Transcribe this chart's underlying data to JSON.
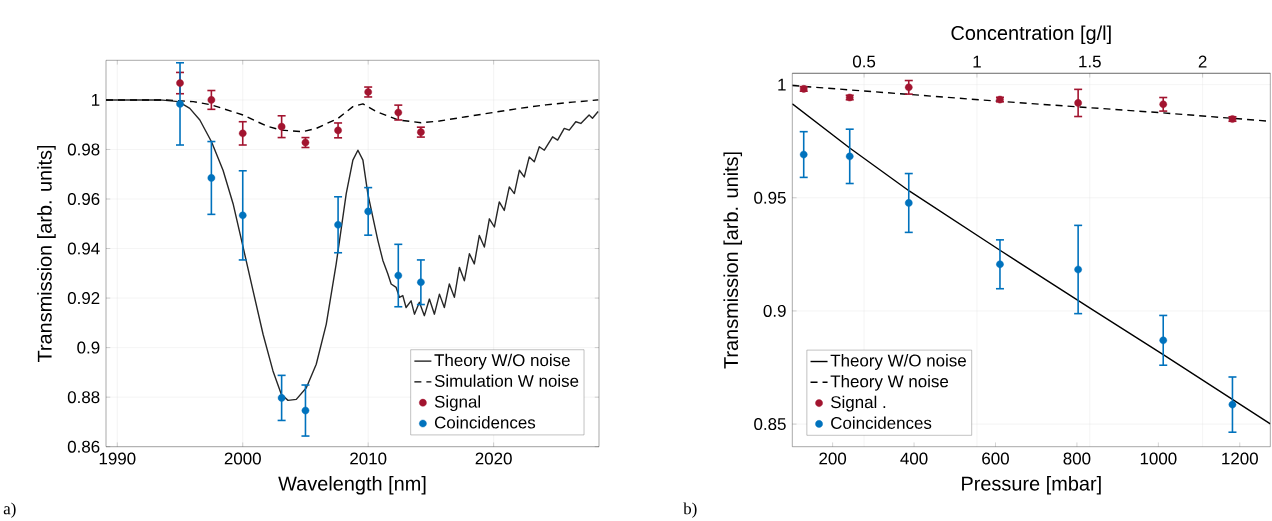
{
  "chart_data": [
    {
      "type": "line",
      "xlabel": "Wavelength [nm]",
      "ylabel": "Transmission [arb. units]",
      "xlim": [
        1989.1,
        2028.4
      ],
      "ylim": [
        0.86,
        1.016
      ],
      "xticks": [
        1990,
        2000,
        2010,
        2020
      ],
      "yticks": [
        0.86,
        0.88,
        0.9,
        0.92,
        0.94,
        0.96,
        0.98,
        1
      ],
      "grid": true,
      "legend": "bottom right",
      "annotations": [
        "a)"
      ],
      "series": [
        {
          "name": "Theory  W/O noise",
          "type": "line",
          "marker": "none",
          "line_style": "solid",
          "color": "#262626",
          "x": [
            1989.1,
            1993.4,
            1994.88,
            1995.78,
            1996.58,
            1997.51,
            1998.43,
            1999.23,
            1999.97,
            2000.82,
            2001.62,
            2002.41,
            2003.08,
            2003.61,
            2004.27,
            2005.07,
            2005.86,
            2006.66,
            2007.45,
            2008.25,
            2008.78,
            2009.18,
            2009.58,
            2009.97,
            2010.37,
            2010.77,
            2011.17,
            2011.57,
            2011.83,
            2012.23,
            2012.49,
            2012.76,
            2013.02,
            2013.42,
            2013.69,
            2014.08,
            2014.48,
            2014.88,
            2015.28,
            2015.68,
            2016.07,
            2016.47,
            2016.87,
            2017.27,
            2017.67,
            2018.07,
            2018.46,
            2018.86,
            2019.26,
            2019.66,
            2020.06,
            2020.45,
            2020.85,
            2021.25,
            2021.65,
            2022.05,
            2022.44,
            2022.84,
            2023.24,
            2023.64,
            2024.04,
            2024.7,
            2025.1,
            2025.63,
            2026.03,
            2026.55,
            2026.95,
            2027.61,
            2027.88,
            2028.33
          ],
          "values": [
            1.0,
            1.0,
            0.9993,
            0.9966,
            0.9919,
            0.9831,
            0.9716,
            0.9581,
            0.9419,
            0.923,
            0.9054,
            0.8906,
            0.8811,
            0.8787,
            0.8791,
            0.8838,
            0.8933,
            0.9095,
            0.9338,
            0.9622,
            0.9757,
            0.9797,
            0.9757,
            0.9622,
            0.9527,
            0.9433,
            0.9352,
            0.9297,
            0.9257,
            0.9243,
            0.9203,
            0.921,
            0.9162,
            0.9189,
            0.9135,
            0.9183,
            0.9129,
            0.9196,
            0.9135,
            0.9216,
            0.9162,
            0.9257,
            0.9203,
            0.9324,
            0.927,
            0.9379,
            0.9338,
            0.9453,
            0.9406,
            0.952,
            0.9487,
            0.9588,
            0.9554,
            0.9649,
            0.9622,
            0.9716,
            0.9689,
            0.977,
            0.975,
            0.9811,
            0.9797,
            0.9851,
            0.9838,
            0.9885,
            0.9878,
            0.9912,
            0.9905,
            0.9939,
            0.9926,
            0.9953
          ]
        },
        {
          "name": "Simulation W noise",
          "type": "line",
          "marker": "none",
          "line_style": "dashed",
          "color": "#000000",
          "x": [
            1989.1,
            1993.93,
            1996.05,
            1997.51,
            2000.03,
            2001.88,
            2003.08,
            2004.8,
            2005.86,
            2007.61,
            2008.78,
            2009.58,
            2010.64,
            2012.41,
            2014.22,
            2015.68,
            2017.8,
            2019.92,
            2022.05,
            2024.17,
            2026.29,
            2028.33
          ],
          "values": [
            1.0,
            1.0,
            0.9993,
            0.998,
            0.9939,
            0.9895,
            0.9878,
            0.9872,
            0.9885,
            0.9926,
            0.9973,
            0.9984,
            0.9953,
            0.9919,
            0.9908,
            0.9915,
            0.9932,
            0.9949,
            0.9966,
            0.998,
            0.9991,
            1.0
          ]
        },
        {
          "name": "Signal",
          "type": "scatter",
          "marker": "circle",
          "color": "#a2142f",
          "x": [
            1995,
            1997.5,
            2000,
            2003.1,
            2005,
            2007.6,
            2010,
            2012.4,
            2014.2
          ],
          "values": [
            1.0068,
            1.0,
            0.9865,
            0.9892,
            0.9828,
            0.9877,
            1.0032,
            0.9949,
            0.987
          ],
          "errors": [
            0.0043,
            0.0038,
            0.0047,
            0.0044,
            0.002,
            0.003,
            0.002,
            0.003,
            0.002
          ]
        },
        {
          "name": "Coincidences",
          "type": "scatter",
          "marker": "circle",
          "color": "#0072bd",
          "x": [
            1995,
            1997.5,
            2000,
            2003.1,
            2005,
            2007.6,
            2010,
            2012.4,
            2014.2
          ],
          "values": [
            0.9984,
            0.9685,
            0.9534,
            0.8797,
            0.8746,
            0.9496,
            0.955,
            0.9291,
            0.9264
          ],
          "errors": [
            0.0166,
            0.0147,
            0.018,
            0.0091,
            0.0103,
            0.0113,
            0.0096,
            0.0126,
            0.009
          ]
        }
      ]
    },
    {
      "type": "line",
      "xlabel": "Pressure [mbar]",
      "ylabel": "Transmission [arb. units]",
      "x2label": "Concentration [g/l]",
      "xlim": [
        101,
        1275
      ],
      "ylim": [
        0.84,
        1.005
      ],
      "x2lim": [
        0.182,
        2.3
      ],
      "xticks": [
        200,
        400,
        600,
        800,
        1000,
        1200
      ],
      "yticks": [
        0.85,
        0.9,
        0.95,
        1
      ],
      "x2ticks": [
        0.5,
        1,
        1.5,
        2
      ],
      "grid": true,
      "legend": "bottom left",
      "annotations": [
        "b)"
      ],
      "series": [
        {
          "name": "Theory W/O noise",
          "type": "line",
          "marker": "none",
          "line_style": "solid",
          "color": "#000000",
          "x": [
            101,
            242,
            389,
            611,
            838,
            1012,
            1275
          ],
          "values": [
            0.9915,
            0.972,
            0.9529,
            0.9268,
            0.9006,
            0.8807,
            0.8501
          ]
        },
        {
          "name": "Theory W noise",
          "type": "line",
          "marker": "none",
          "line_style": "dashed",
          "color": "#000000",
          "x": [
            101,
            611,
            1012,
            1275
          ],
          "values": [
            0.9996,
            0.9926,
            0.9875,
            0.9838
          ]
        },
        {
          "name": "Signal         .",
          "type": "scatter",
          "marker": "circle",
          "color": "#a2142f",
          "x": [
            129,
            242,
            387,
            611,
            803,
            1012,
            1182
          ],
          "values": [
            0.9981,
            0.9943,
            0.9988,
            0.9934,
            0.9919,
            0.9913,
            0.9848
          ],
          "errors": [
            0.001,
            0.001,
            0.003,
            0.001,
            0.006,
            0.003,
            0.001
          ]
        },
        {
          "name": "Coincidences",
          "type": "scatter",
          "marker": "circle",
          "color": "#0072bd",
          "x": [
            129,
            242,
            387,
            611,
            803,
            1012,
            1182
          ],
          "values": [
            0.9691,
            0.9683,
            0.9477,
            0.9206,
            0.9183,
            0.887,
            0.8586
          ],
          "errors": [
            0.0101,
            0.012,
            0.013,
            0.0108,
            0.0195,
            0.011,
            0.0122
          ]
        }
      ]
    }
  ]
}
